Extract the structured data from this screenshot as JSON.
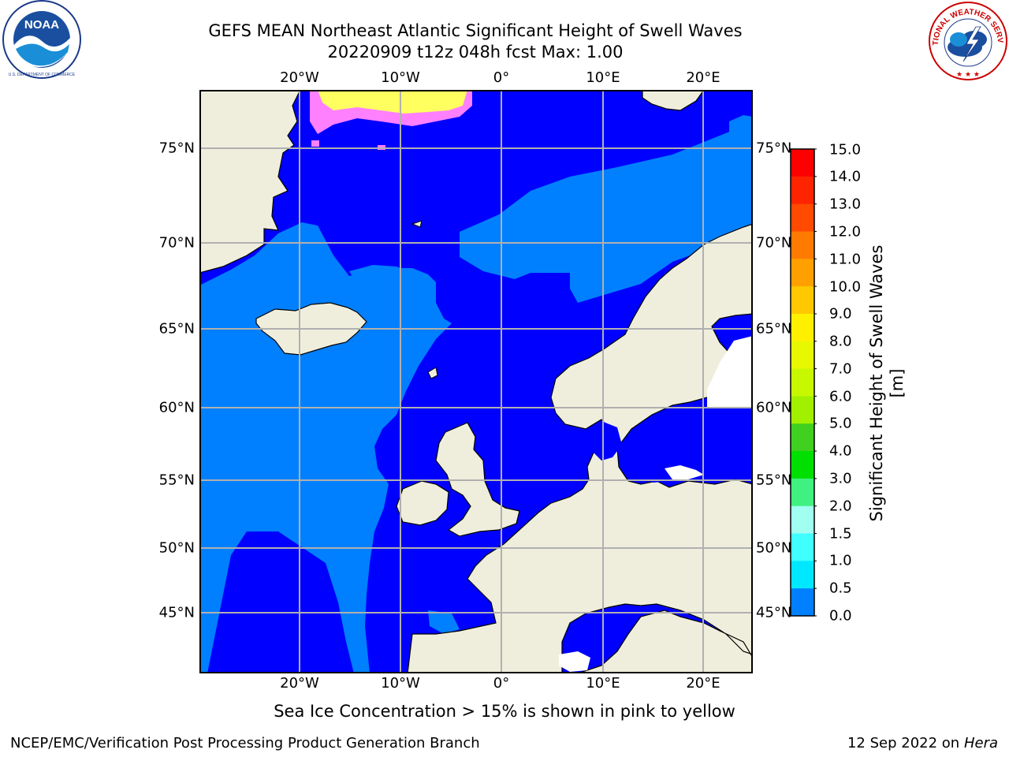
{
  "title": "GEFS MEAN Northeast Atlantic Significant Height of Swell Waves",
  "subtitle": "20220909 t12z 048h fcst   Max: 1.00",
  "longitude_ticks": [
    "20°W",
    "10°W",
    "0°",
    "10°E",
    "20°E"
  ],
  "latitude_ticks": [
    "75°N",
    "70°N",
    "65°N",
    "60°N",
    "55°N",
    "50°N",
    "45°N"
  ],
  "colorbar": {
    "title": "Significant Height of Swell Waves [m]",
    "ticks": [
      "15.0",
      "14.0",
      "13.0",
      "12.0",
      "11.0",
      "10.0",
      "9.0",
      "8.0",
      "7.0",
      "6.0",
      "5.0",
      "4.0",
      "3.0",
      "2.0",
      "1.5",
      "1.0",
      "0.5",
      "0.0"
    ],
    "colors": [
      "#ff0000",
      "#ff2400",
      "#ff4a00",
      "#ff7a00",
      "#ffa000",
      "#ffc800",
      "#fff000",
      "#e8f800",
      "#c8f800",
      "#a0f000",
      "#40d020",
      "#00e000",
      "#40f080",
      "#a0fff0",
      "#40ffff",
      "#00e8ff",
      "#0080ff",
      "#0000ff"
    ]
  },
  "note": "Sea Ice Concentration > 15% is shown in pink to yellow",
  "footer_left": "NCEP/EMC/Verification Post Processing Product Generation Branch",
  "footer_date": "12 Sep 2022 on",
  "footer_machine": "Hera",
  "colors": {
    "land": "#efeedd",
    "swell_0_05": "#0000ff",
    "swell_05_10": "#0080ff",
    "grid": "#b0b0b0",
    "ice_pink": "#ff80ff",
    "ice_yellow": "#ffff60"
  },
  "logos": {
    "left": "NOAA",
    "right": "NATIONAL WEATHER SERVICE"
  }
}
